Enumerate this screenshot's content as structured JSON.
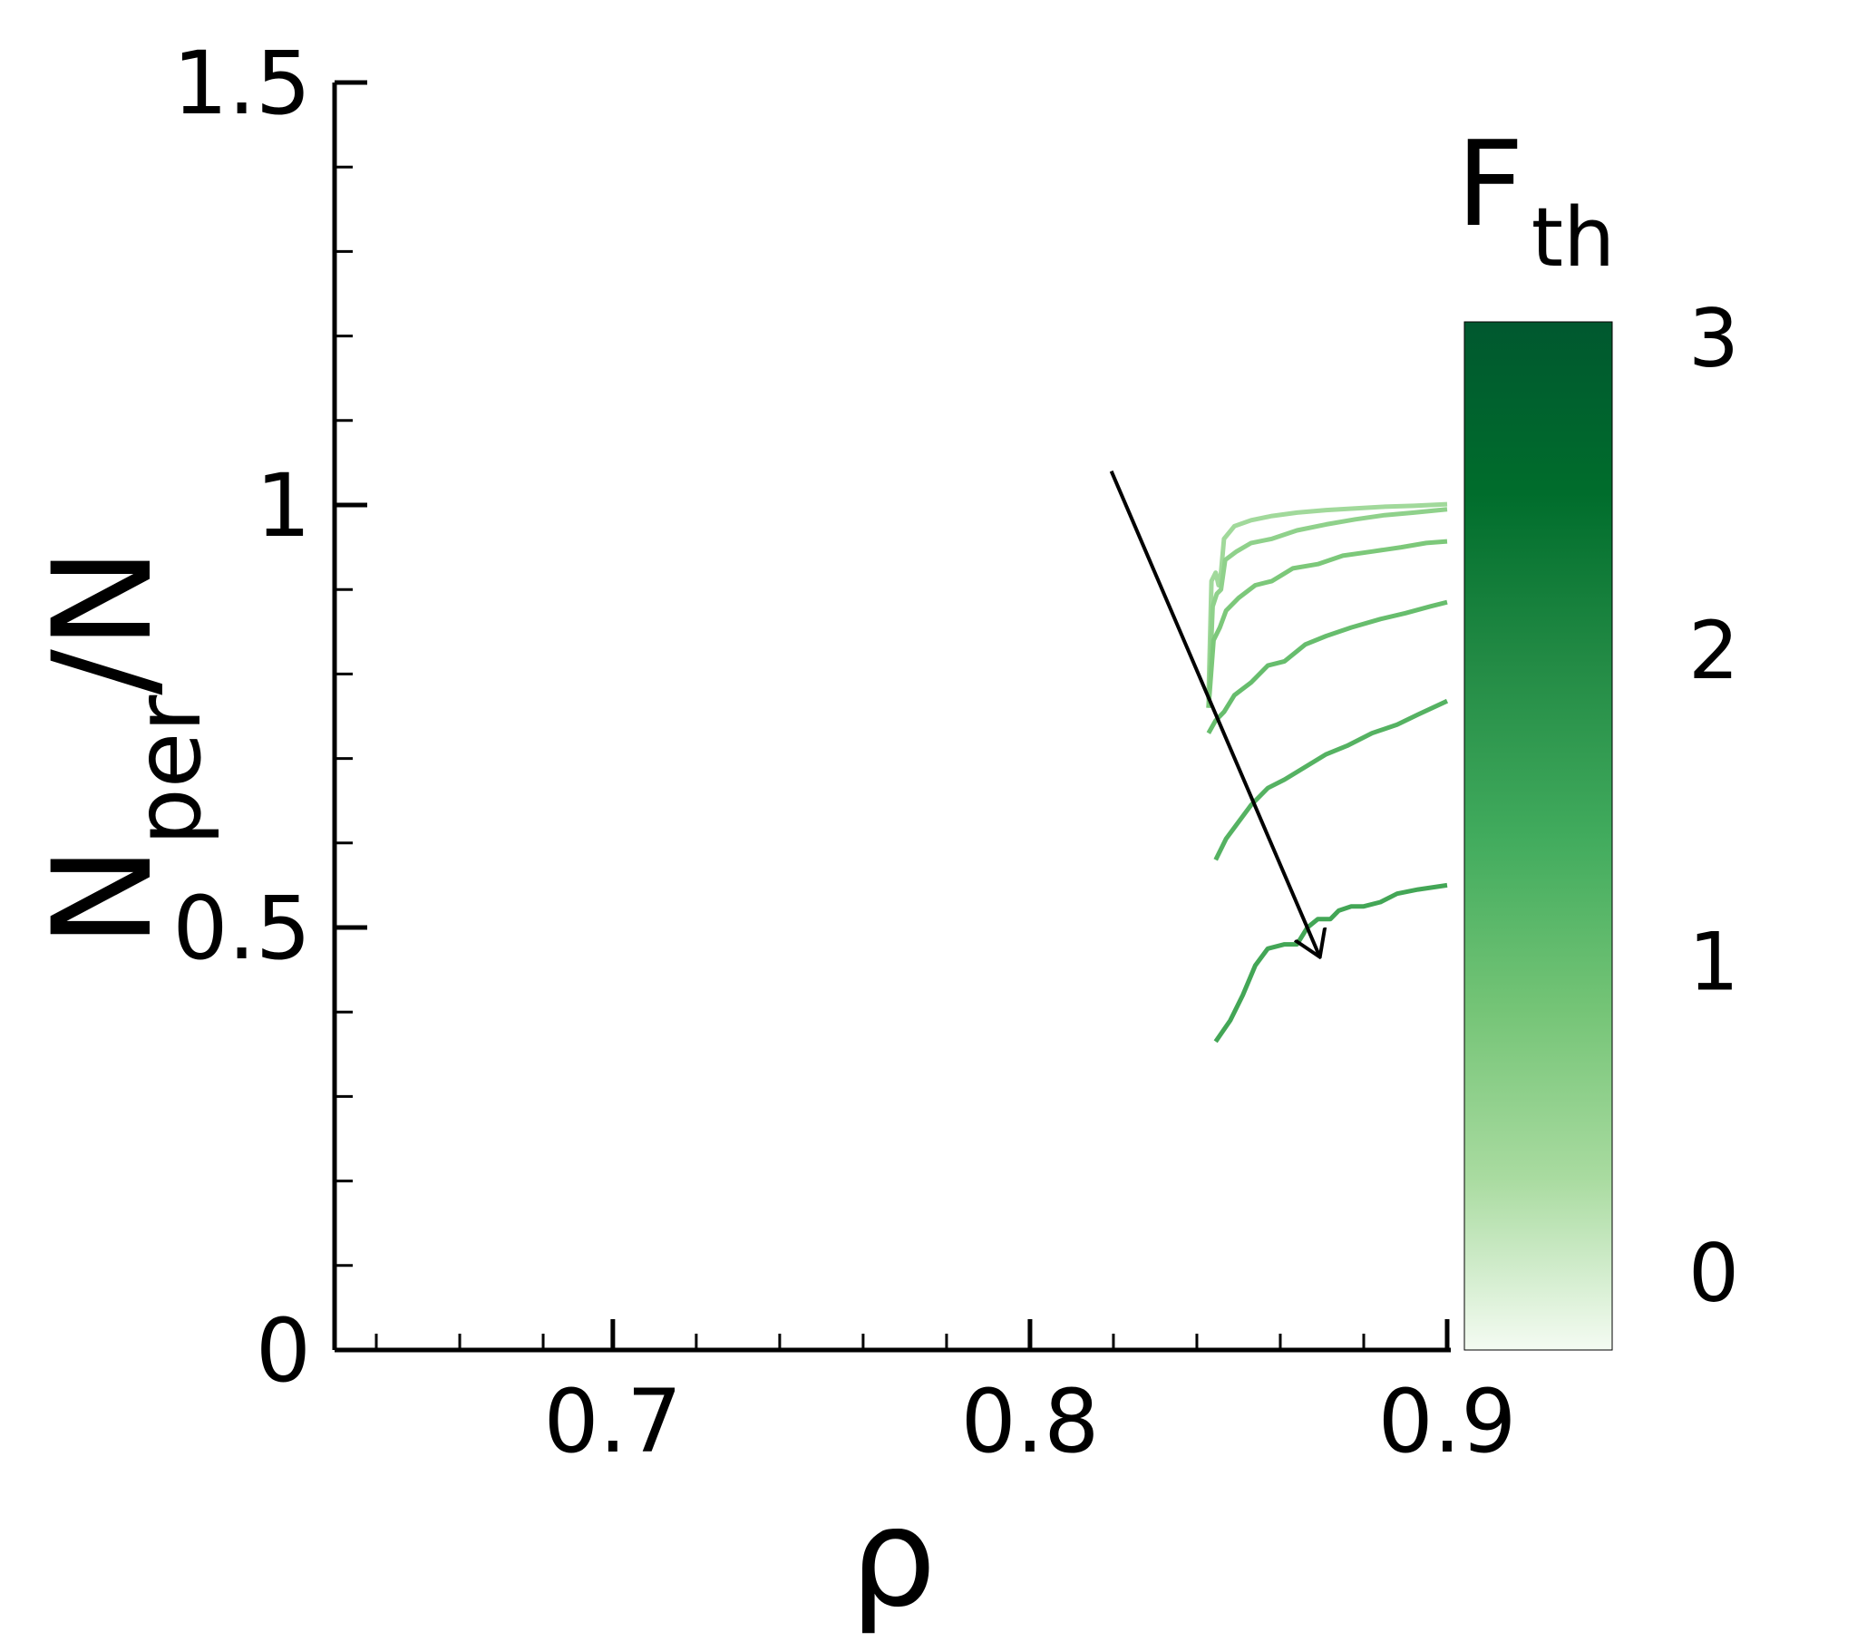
{
  "chart_data": {
    "type": "line",
    "xlabel": "ρ",
    "ylabel": {
      "main": "N",
      "sub": "per",
      "suffix": "/N"
    },
    "xlim": [
      0.6333,
      0.9
    ],
    "ylim": [
      0,
      1.5
    ],
    "x_ticks": [
      {
        "value": 0.7,
        "label": "0.7"
      },
      {
        "value": 0.8,
        "label": "0.8"
      },
      {
        "value": 0.9,
        "label": "0.9"
      }
    ],
    "x_minor_ticks": [
      0.6433,
      0.6633,
      0.6833,
      0.72,
      0.74,
      0.76,
      0.78,
      0.82,
      0.84,
      0.86,
      0.88
    ],
    "y_ticks": [
      {
        "value": 0,
        "label": "0"
      },
      {
        "value": 0.5,
        "label": "0.5"
      },
      {
        "value": 1,
        "label": "1"
      },
      {
        "value": 1.5,
        "label": "1.5"
      }
    ],
    "y_minor_ticks": [
      0.1,
      0.2,
      0.3,
      0.4,
      0.6,
      0.7,
      0.8,
      0.9,
      1.1,
      1.2,
      1.3,
      1.4
    ],
    "colorbar": {
      "title": {
        "main": "F",
        "sub": "th"
      },
      "range": [
        -0.25,
        3.05
      ],
      "ticks": [
        {
          "value": 0,
          "label": "0"
        },
        {
          "value": 1,
          "label": "1"
        },
        {
          "value": 2,
          "label": "2"
        },
        {
          "value": 3,
          "label": "3"
        }
      ],
      "colors": [
        "#f4fbf2",
        "#a9dba0",
        "#74c476",
        "#41ab5d",
        "#238b45",
        "#006d2c",
        "#00582f"
      ]
    },
    "series": [
      {
        "color": "#a1d99b",
        "points": [
          [
            0.8428,
            0.77
          ],
          [
            0.8435,
            0.91
          ],
          [
            0.8445,
            0.92
          ],
          [
            0.8452,
            0.905
          ],
          [
            0.8458,
            0.92
          ],
          [
            0.8465,
            0.96
          ],
          [
            0.849,
            0.975
          ],
          [
            0.853,
            0.982
          ],
          [
            0.858,
            0.987
          ],
          [
            0.864,
            0.991
          ],
          [
            0.871,
            0.994
          ],
          [
            0.878,
            0.996
          ],
          [
            0.885,
            0.998
          ],
          [
            0.892,
            0.999
          ],
          [
            0.9,
            1.001
          ]
        ]
      },
      {
        "color": "#8fd18b",
        "points": [
          [
            0.8428,
            0.76
          ],
          [
            0.8438,
            0.88
          ],
          [
            0.8448,
            0.895
          ],
          [
            0.8458,
            0.9
          ],
          [
            0.8468,
            0.935
          ],
          [
            0.8495,
            0.945
          ],
          [
            0.853,
            0.955
          ],
          [
            0.858,
            0.96
          ],
          [
            0.864,
            0.97
          ],
          [
            0.871,
            0.977
          ],
          [
            0.878,
            0.983
          ],
          [
            0.885,
            0.988
          ],
          [
            0.892,
            0.991
          ],
          [
            0.9,
            0.995
          ]
        ]
      },
      {
        "color": "#7cc87a",
        "points": [
          [
            0.8428,
            0.76
          ],
          [
            0.844,
            0.84
          ],
          [
            0.8455,
            0.855
          ],
          [
            0.847,
            0.875
          ],
          [
            0.85,
            0.89
          ],
          [
            0.854,
            0.905
          ],
          [
            0.858,
            0.91
          ],
          [
            0.863,
            0.925
          ],
          [
            0.869,
            0.93
          ],
          [
            0.875,
            0.94
          ],
          [
            0.882,
            0.945
          ],
          [
            0.889,
            0.95
          ],
          [
            0.895,
            0.955
          ],
          [
            0.9,
            0.957
          ]
        ]
      },
      {
        "color": "#67bd6d",
        "points": [
          [
            0.8428,
            0.73
          ],
          [
            0.8445,
            0.745
          ],
          [
            0.8465,
            0.755
          ],
          [
            0.849,
            0.775
          ],
          [
            0.853,
            0.79
          ],
          [
            0.857,
            0.81
          ],
          [
            0.861,
            0.815
          ],
          [
            0.866,
            0.835
          ],
          [
            0.871,
            0.845
          ],
          [
            0.877,
            0.855
          ],
          [
            0.884,
            0.865
          ],
          [
            0.89,
            0.872
          ],
          [
            0.896,
            0.88
          ],
          [
            0.9,
            0.885
          ]
        ]
      },
      {
        "color": "#55b262",
        "points": [
          [
            0.8445,
            0.58
          ],
          [
            0.847,
            0.605
          ],
          [
            0.85,
            0.625
          ],
          [
            0.853,
            0.645
          ],
          [
            0.857,
            0.665
          ],
          [
            0.861,
            0.675
          ],
          [
            0.866,
            0.69
          ],
          [
            0.871,
            0.705
          ],
          [
            0.876,
            0.715
          ],
          [
            0.882,
            0.73
          ],
          [
            0.888,
            0.74
          ],
          [
            0.893,
            0.752
          ],
          [
            0.9,
            0.768
          ]
        ]
      },
      {
        "color": "#43a656",
        "points": [
          [
            0.8445,
            0.365
          ],
          [
            0.848,
            0.39
          ],
          [
            0.851,
            0.42
          ],
          [
            0.854,
            0.455
          ],
          [
            0.857,
            0.475
          ],
          [
            0.861,
            0.48
          ],
          [
            0.864,
            0.48
          ],
          [
            0.8665,
            0.5
          ],
          [
            0.869,
            0.51
          ],
          [
            0.872,
            0.51
          ],
          [
            0.874,
            0.52
          ],
          [
            0.877,
            0.525
          ],
          [
            0.88,
            0.525
          ],
          [
            0.884,
            0.53
          ],
          [
            0.888,
            0.54
          ],
          [
            0.893,
            0.545
          ],
          [
            0.9,
            0.55
          ]
        ]
      }
    ],
    "arrow": {
      "from": [
        0.8195,
        1.04
      ],
      "to": [
        0.8695,
        0.465
      ]
    }
  }
}
